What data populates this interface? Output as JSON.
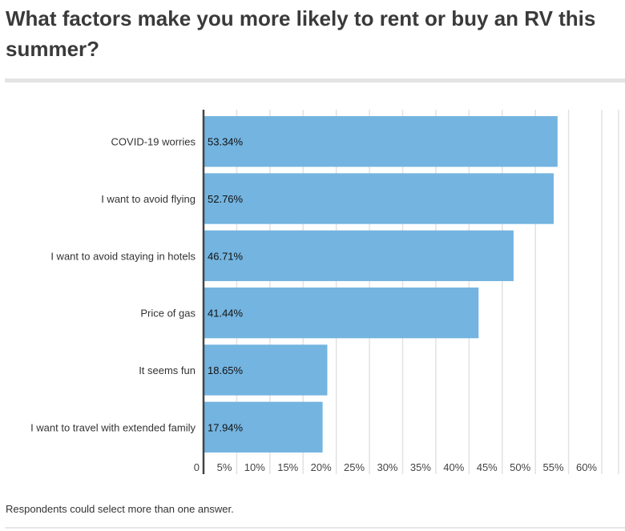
{
  "title": "What factors make you more likely to rent or buy an RV this summer?",
  "footer": "Respondents could select more than one answer.",
  "colors": {
    "bar": "#74b4e0",
    "grid": "#e2e2e2",
    "axis": "#444444"
  },
  "chart_data": {
    "type": "bar",
    "orientation": "horizontal",
    "title": "What factors make you more likely to rent or buy an RV this summer?",
    "categories": [
      "COVID-19 worries",
      "I want to avoid flying",
      "I want to avoid staying in hotels",
      "Price of gas",
      "It seems fun",
      "I want to travel with extended family"
    ],
    "values": [
      53.34,
      52.76,
      46.71,
      41.44,
      18.65,
      17.94
    ],
    "labels": [
      "53.34%",
      "52.76%",
      "46.71%",
      "41.44%",
      "18.65%",
      "17.94%"
    ],
    "xlim": [
      0,
      60
    ],
    "ticks": [
      0,
      5,
      10,
      15,
      20,
      25,
      30,
      35,
      40,
      45,
      50,
      55,
      60
    ],
    "tick_labels": [
      "0",
      "5%",
      "10%",
      "15%",
      "20%",
      "25%",
      "30%",
      "35%",
      "40%",
      "45%",
      "50%",
      "55%",
      "60%"
    ],
    "grid": true,
    "xlabel": "",
    "ylabel": ""
  }
}
